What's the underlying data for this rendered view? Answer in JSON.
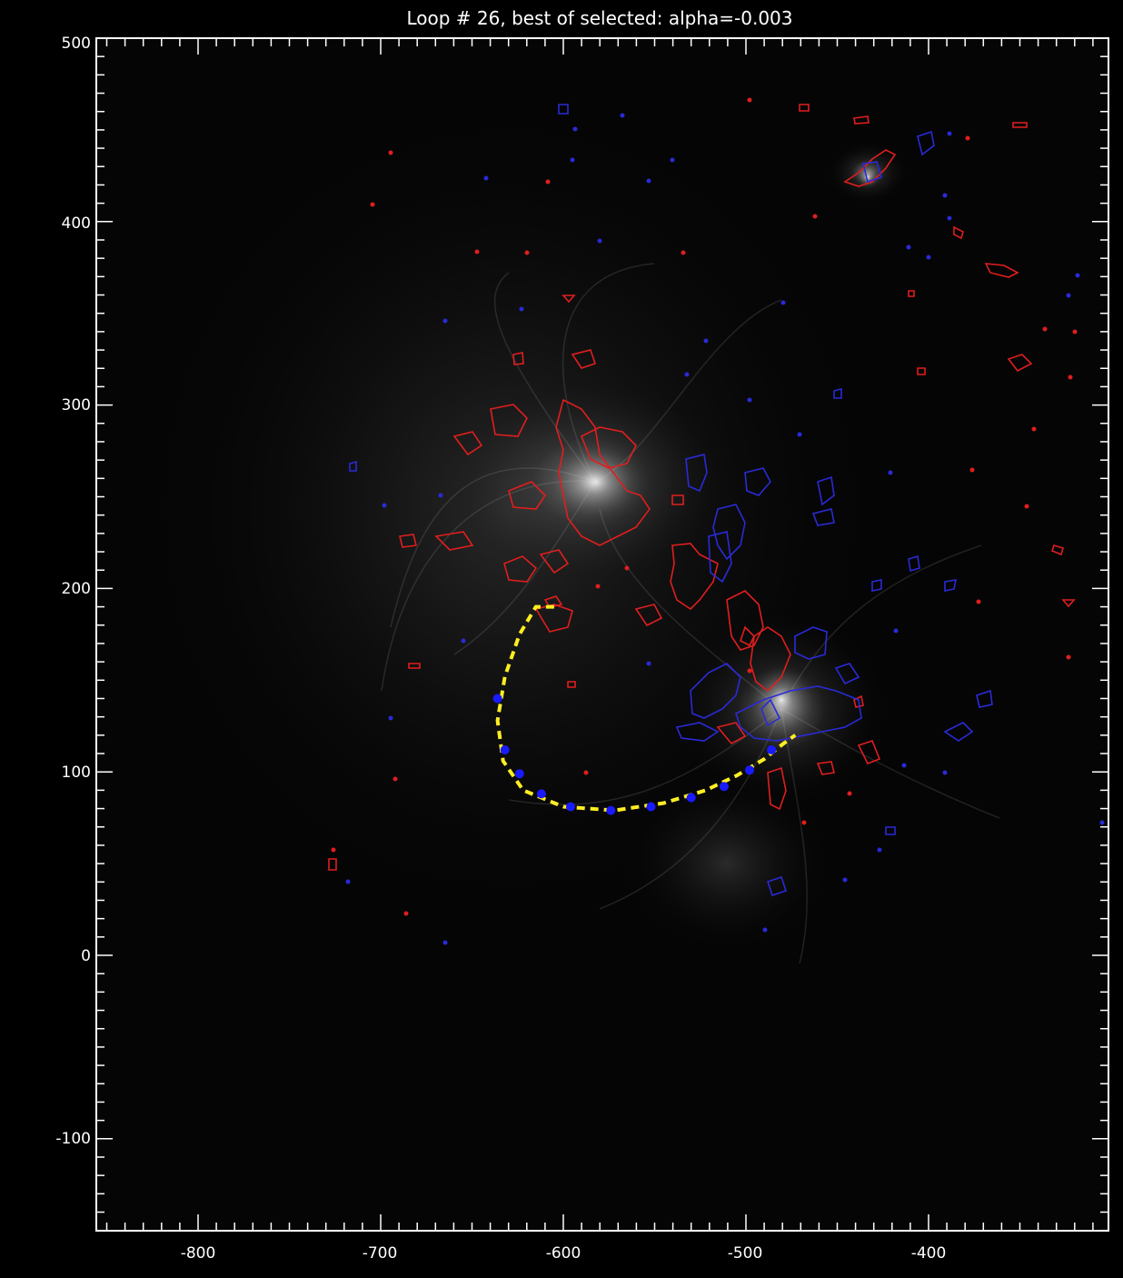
{
  "title": "Loop #  26, best of selected: alpha=-0.003",
  "x_ticks": [
    "-800",
    "-700",
    "-600",
    "-500",
    "-400"
  ],
  "y_ticks": [
    "500",
    "400",
    "300",
    "200",
    "100",
    "0",
    "-100"
  ],
  "colors": {
    "background": "#000000",
    "axis": "#ffffff",
    "positive_contour": "#e01e1e",
    "negative_contour": "#2a2ad8",
    "loop_fit": "#ffee22",
    "loop_points": "#1a1aff"
  },
  "loop": {
    "number": 26,
    "alpha": -0.003,
    "fit_x": [
      -605,
      -615,
      -624,
      -632,
      -636,
      -633,
      -622,
      -600,
      -572,
      -545,
      -522,
      -505,
      -490,
      -480,
      -473
    ],
    "fit_y": [
      190,
      190,
      175,
      152,
      128,
      106,
      90,
      81,
      79,
      83,
      90,
      98,
      107,
      115,
      120
    ],
    "points_x": [
      -636,
      -632,
      -624,
      -612,
      -596,
      -574,
      -552,
      -530,
      -512,
      -498,
      -486
    ],
    "points_y": [
      140,
      112,
      99,
      88,
      81,
      79,
      81,
      86,
      92,
      101,
      112
    ]
  }
}
